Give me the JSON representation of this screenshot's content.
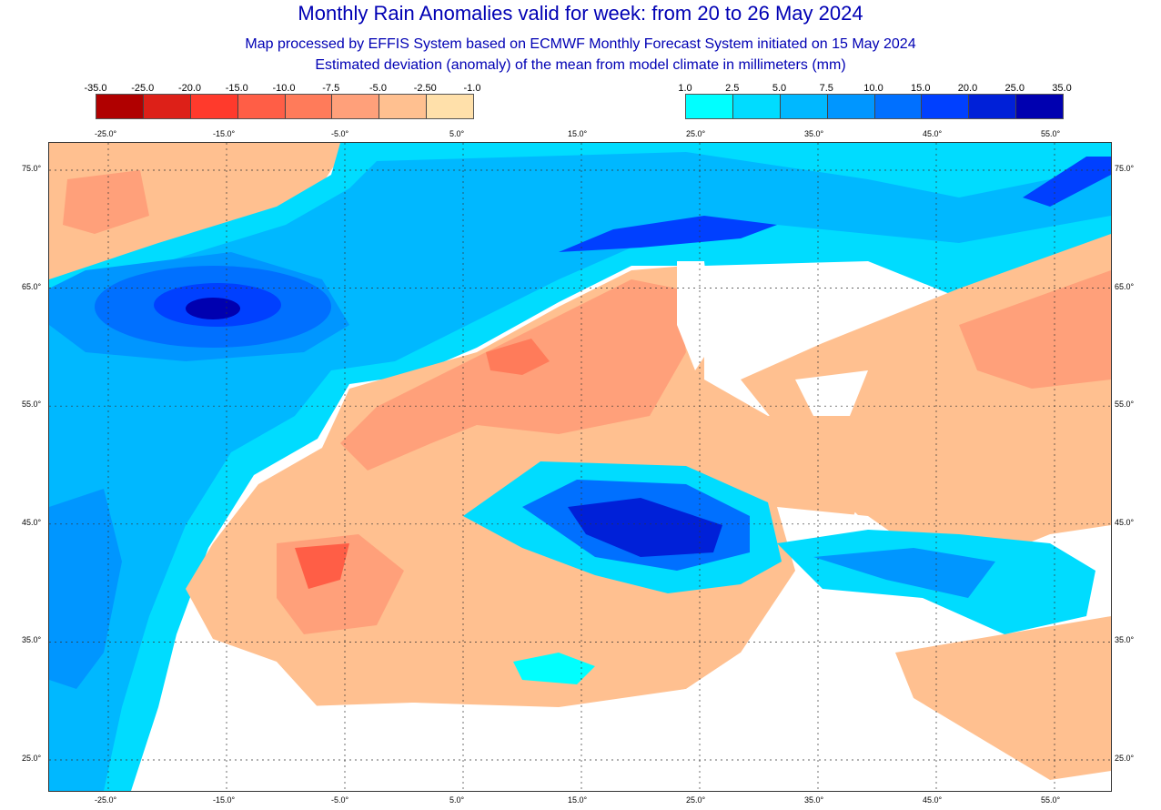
{
  "header": {
    "title": "Monthly Rain Anomalies valid for week: from 20 to 26 May 2024",
    "subtitle1": "Map processed by EFFIS System based on ECMWF Monthly Forecast System initiated on 15 May 2024",
    "subtitle2": "Estimated deviation (anomaly) of the mean from model climate in millimeters (mm)"
  },
  "legend_negative": {
    "labels": [
      "-35.0",
      "-25.0",
      "-20.0",
      "-15.0",
      "-10.0",
      "-7.5",
      "-5.0",
      "-2.50",
      "-1.0"
    ],
    "colors": [
      "#b00000",
      "#dd2018",
      "#ff3a2c",
      "#ff5e46",
      "#ff7b5a",
      "#ffa07a",
      "#ffc090",
      "#ffe0aa"
    ]
  },
  "legend_positive": {
    "labels": [
      "1.0",
      "2.5",
      "5.0",
      "7.5",
      "10.0",
      "15.0",
      "20.0",
      "25.0",
      "35.0"
    ],
    "colors": [
      "#00ffff",
      "#00dcff",
      "#00b8ff",
      "#0096ff",
      "#0070ff",
      "#0040ff",
      "#0020d8",
      "#0000b0"
    ]
  },
  "axes": {
    "lon_labels": [
      "-25.0°",
      "-15.0°",
      "-5.0°",
      "5.0°",
      "15.0°",
      "25.0°",
      "35.0°",
      "45.0°",
      "55.0°"
    ],
    "lat_labels": [
      "75.0°",
      "65.0°",
      "55.0°",
      "45.0°",
      "35.0°",
      "25.0°"
    ]
  }
}
